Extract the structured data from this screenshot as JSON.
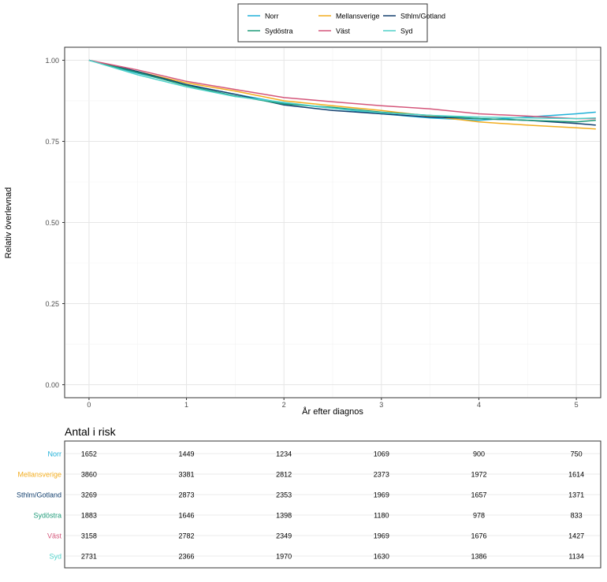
{
  "chart_data": {
    "type": "line",
    "xlabel": "År efter diagnos",
    "ylabel": "Relativ överlevnad",
    "xlim": [
      -0.25,
      5.25
    ],
    "ylim": [
      -0.04,
      1.04
    ],
    "x_ticks": [
      0,
      1,
      2,
      3,
      4,
      5
    ],
    "y_ticks": [
      0,
      0.25,
      0.5,
      0.75,
      1.0
    ],
    "y_tick_labels": [
      "0.00",
      "0.25",
      "0.50",
      "0.75",
      "1.00"
    ],
    "grid": true,
    "legend_position": "top",
    "series": [
      {
        "name": "Norr",
        "color": "#1fb0d8",
        "x": [
          0,
          0.5,
          1,
          1.5,
          2,
          2.5,
          3,
          3.5,
          4,
          4.5,
          5,
          5.2
        ],
        "y": [
          1.0,
          0.96,
          0.925,
          0.895,
          0.868,
          0.852,
          0.835,
          0.822,
          0.815,
          0.825,
          0.835,
          0.84
        ]
      },
      {
        "name": "Mellansverige",
        "color": "#f2ac1e",
        "x": [
          0,
          0.5,
          1,
          1.5,
          2,
          2.5,
          3,
          3.5,
          4,
          4.5,
          5,
          5.2
        ],
        "y": [
          1.0,
          0.965,
          0.93,
          0.905,
          0.875,
          0.86,
          0.845,
          0.828,
          0.81,
          0.8,
          0.792,
          0.788
        ]
      },
      {
        "name": "Sthlm/Gotland",
        "color": "#123f6e",
        "x": [
          0,
          0.5,
          1,
          1.5,
          2,
          2.5,
          3,
          3.5,
          4,
          4.5,
          5,
          5.2
        ],
        "y": [
          1.0,
          0.965,
          0.925,
          0.895,
          0.862,
          0.845,
          0.835,
          0.825,
          0.82,
          0.815,
          0.805,
          0.8
        ]
      },
      {
        "name": "Sydöstra",
        "color": "#1e9a78",
        "x": [
          0,
          0.5,
          1,
          1.5,
          2,
          2.5,
          3,
          3.5,
          4,
          4.5,
          5,
          5.2
        ],
        "y": [
          1.0,
          0.962,
          0.922,
          0.89,
          0.865,
          0.855,
          0.84,
          0.83,
          0.82,
          0.815,
          0.81,
          0.815
        ]
      },
      {
        "name": "Väst",
        "color": "#d4567a",
        "x": [
          0,
          0.5,
          1,
          1.5,
          2,
          2.5,
          3,
          3.5,
          4,
          4.5,
          5,
          5.2
        ],
        "y": [
          1.0,
          0.97,
          0.935,
          0.91,
          0.885,
          0.872,
          0.86,
          0.85,
          0.835,
          0.828,
          0.82,
          0.82
        ]
      },
      {
        "name": "Syd",
        "color": "#4fd1c9",
        "x": [
          0,
          0.5,
          1,
          1.5,
          2,
          2.5,
          3,
          3.5,
          4,
          4.5,
          5,
          5.2
        ],
        "y": [
          1.0,
          0.955,
          0.918,
          0.888,
          0.87,
          0.852,
          0.838,
          0.83,
          0.825,
          0.822,
          0.82,
          0.822
        ]
      }
    ]
  },
  "risk_table": {
    "title": "Antal i risk",
    "rows": [
      {
        "name": "Norr",
        "color": "#1fb0d8",
        "values": [
          "1652",
          "1449",
          "1234",
          "1069",
          "900",
          "750"
        ]
      },
      {
        "name": "Mellansverige",
        "color": "#f2ac1e",
        "values": [
          "3860",
          "3381",
          "2812",
          "2373",
          "1972",
          "1614"
        ]
      },
      {
        "name": "Sthlm/Gotland",
        "color": "#123f6e",
        "values": [
          "3269",
          "2873",
          "2353",
          "1969",
          "1657",
          "1371"
        ]
      },
      {
        "name": "Sydöstra",
        "color": "#1e9a78",
        "values": [
          "1883",
          "1646",
          "1398",
          "1180",
          "978",
          "833"
        ]
      },
      {
        "name": "Väst",
        "color": "#d4567a",
        "values": [
          "3158",
          "2782",
          "2349",
          "1969",
          "1676",
          "1427"
        ]
      },
      {
        "name": "Syd",
        "color": "#4fd1c9",
        "values": [
          "2731",
          "2366",
          "1970",
          "1630",
          "1386",
          "1134"
        ]
      }
    ]
  }
}
